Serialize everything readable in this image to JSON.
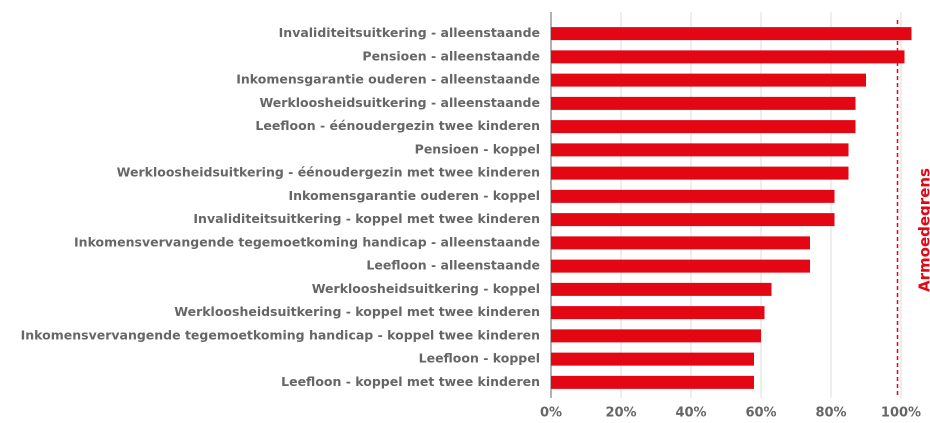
{
  "chart_data": {
    "type": "barh",
    "categories": [
      "Invaliditeitsuitkering - alleenstaande",
      "Pensioen  - alleenstaande",
      "Inkomensgarantie ouderen - alleenstaande",
      "Werkloosheidsuitkering - alleenstaande",
      "Leefloon - éénoudergezin twee kinderen",
      "Pensioen - koppel",
      "Werkloosheidsuitkering - éénoudergezin met twee kinderen",
      "Inkomensgarantie ouderen - koppel",
      "Invaliditeitsuitkering - koppel met twee kinderen",
      "Inkomensvervangende tegemoetkoming handicap - alleenstaande",
      "Leefloon - alleenstaande",
      "Werkloosheidsuitkering - koppel",
      "Werkloosheidsuitkering - koppel met twee kinderen",
      "Inkomensvervangende tegemoetkoming handicap - koppel twee kinderen",
      "Leefloon - koppel",
      "Leefloon - koppel met twee kinderen"
    ],
    "values": [
      103,
      101,
      90,
      87,
      87,
      85,
      85,
      81,
      81,
      74,
      74,
      63,
      61,
      60,
      58,
      58
    ],
    "color": "#e30613",
    "xlim": [
      0,
      100
    ],
    "xticks": [
      {
        "value": 0,
        "label": "0%"
      },
      {
        "value": 20,
        "label": "20%"
      },
      {
        "value": 40,
        "label": "40%"
      },
      {
        "value": 60,
        "label": "60%"
      },
      {
        "value": 80,
        "label": "80%"
      },
      {
        "value": 100,
        "label": "100%"
      }
    ],
    "grid": true,
    "threshold": {
      "label": "Armoedegrens",
      "value": 99,
      "color": "#e30613"
    }
  }
}
